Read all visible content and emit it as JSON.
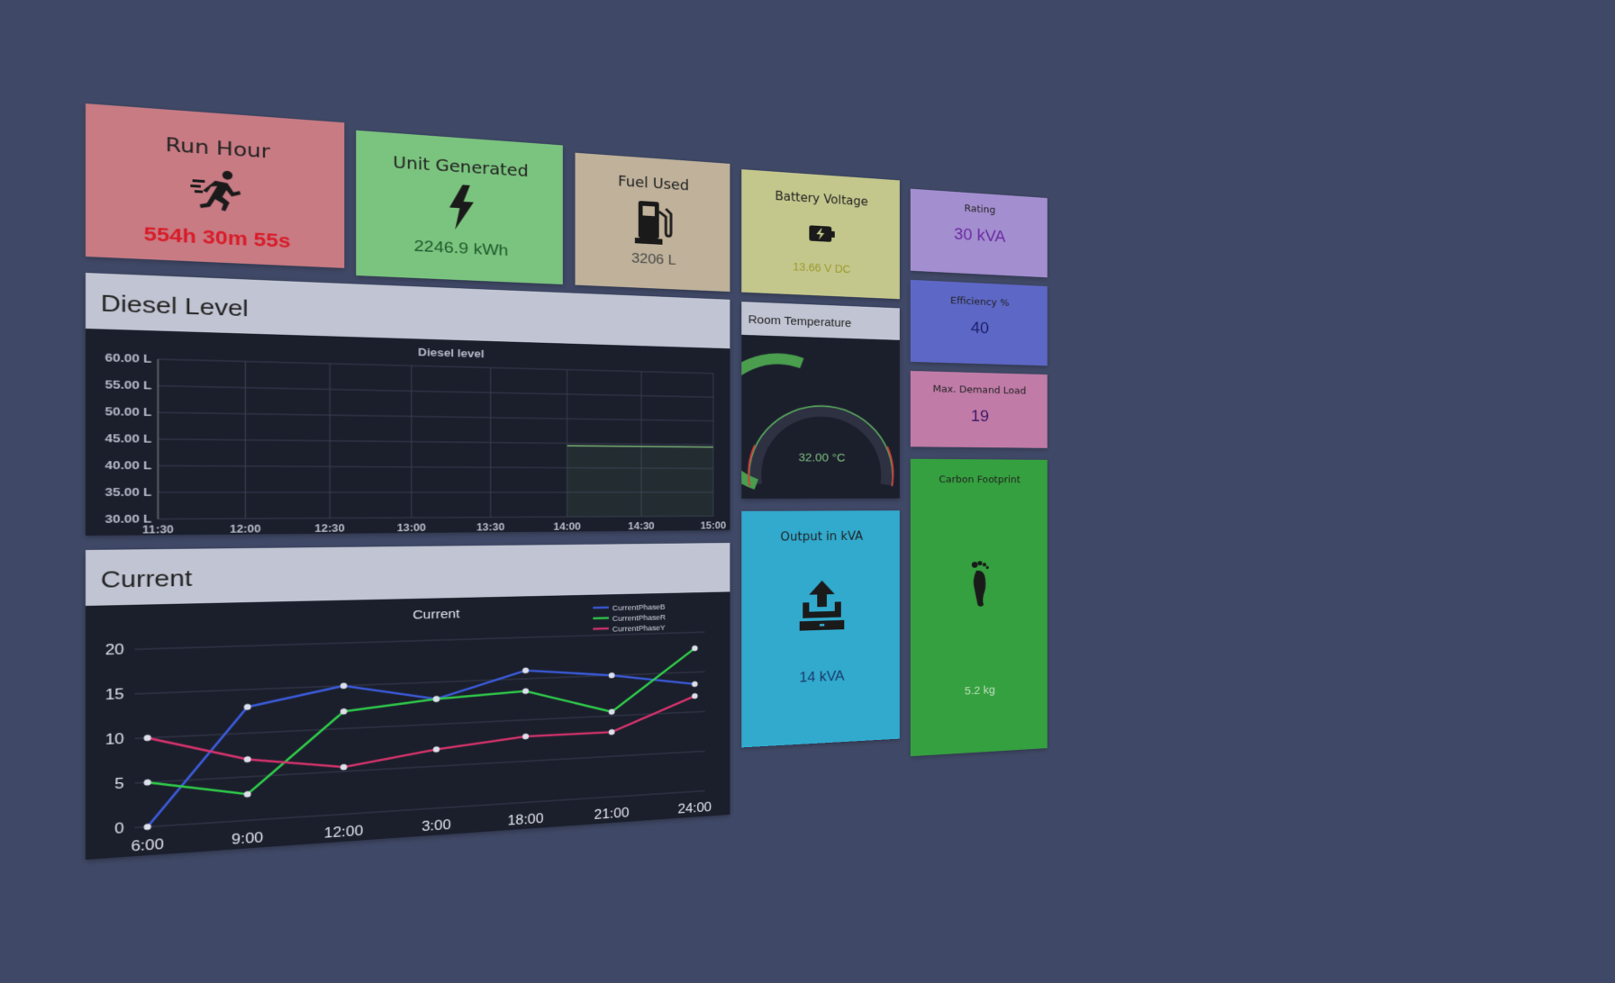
{
  "tiles": {
    "run_hour": {
      "title": "Run Hour",
      "value": "554h 30m 55s",
      "icon": "running-person-icon",
      "bg": "#c87b83",
      "value_color": "#d81c2a"
    },
    "unit_generated": {
      "title": "Unit Generated",
      "value": "2246.9 kWh",
      "icon": "lightning-icon",
      "bg": "#7bc47f",
      "value_color": "#1e5a2a"
    },
    "fuel_used": {
      "title": "Fuel Used",
      "value": "3206 L",
      "icon": "fuel-pump-icon",
      "bg": "#bfb19a",
      "value_color": "#4a4a4a"
    },
    "battery_voltage": {
      "title": "Battery Voltage",
      "value": "13.66 V DC",
      "icon": "battery-charging-icon",
      "bg": "#c4c78c",
      "value_color": "#9a9a2a"
    },
    "rating": {
      "title": "Rating",
      "value": "30 kVA",
      "bg": "#a38ed0",
      "value_color": "#6a2aa0"
    },
    "efficiency": {
      "title": "Efficiency %",
      "value": "40",
      "bg": "#5d67c6",
      "value_color": "#1c1f6a"
    },
    "max_demand": {
      "title": "Max. Demand Load",
      "value": "19",
      "bg": "#c07ba7",
      "value_color": "#3a1766"
    },
    "carbon": {
      "title": "Carbon Footprint",
      "value": "5.2 kg",
      "icon": "footprint-icon",
      "bg": "#35a03f",
      "value_color": "#bfe0bf"
    },
    "output_kva": {
      "title": "Output in kVA",
      "value": "14 kVA",
      "icon": "upload-export-icon",
      "bg": "#31aace",
      "value_color": "#1a3a6a"
    }
  },
  "room_temperature": {
    "title": "Room Temperature",
    "value": "32.00 °C"
  },
  "diesel_panel": {
    "title": "Diesel Level"
  },
  "current_panel": {
    "title": "Current"
  },
  "chart_data": [
    {
      "type": "area",
      "title": "Diesel level",
      "x": [
        "11:30",
        "12:00",
        "12:30",
        "13:00",
        "13:30",
        "14:00",
        "14:30",
        "15:00"
      ],
      "ylim": [
        30,
        60
      ],
      "yticks": [
        "30.00 L",
        "35.00 L",
        "40.00 L",
        "45.00 L",
        "50.00 L",
        "55.00 L",
        "60.00 L"
      ],
      "series": [
        {
          "points": [
            [
              "14:00",
              44.5
            ],
            [
              "15:00",
              44.5
            ]
          ]
        }
      ],
      "grid": true
    },
    {
      "type": "line",
      "title": "Current",
      "categories": [
        "6:00",
        "9:00",
        "12:00",
        "3:00",
        "18:00",
        "21:00",
        "24:00"
      ],
      "ylim": [
        0,
        20
      ],
      "yticks": [
        "0",
        "5",
        "10",
        "15",
        "20"
      ],
      "legend_position": "top-right",
      "series": [
        {
          "name": "CurrentPhaseB",
          "color": "#3b5bdb",
          "values": [
            0,
            13,
            15,
            13,
            16,
            15,
            13.5
          ]
        },
        {
          "name": "CurrentPhaseR",
          "color": "#2fce4a",
          "values": [
            5,
            3,
            12,
            13,
            13.5,
            10.5,
            18
          ]
        },
        {
          "name": "CurrentPhaseY",
          "color": "#d6336c",
          "values": [
            10,
            7,
            5.5,
            7,
            8,
            8,
            12
          ]
        }
      ]
    }
  ]
}
